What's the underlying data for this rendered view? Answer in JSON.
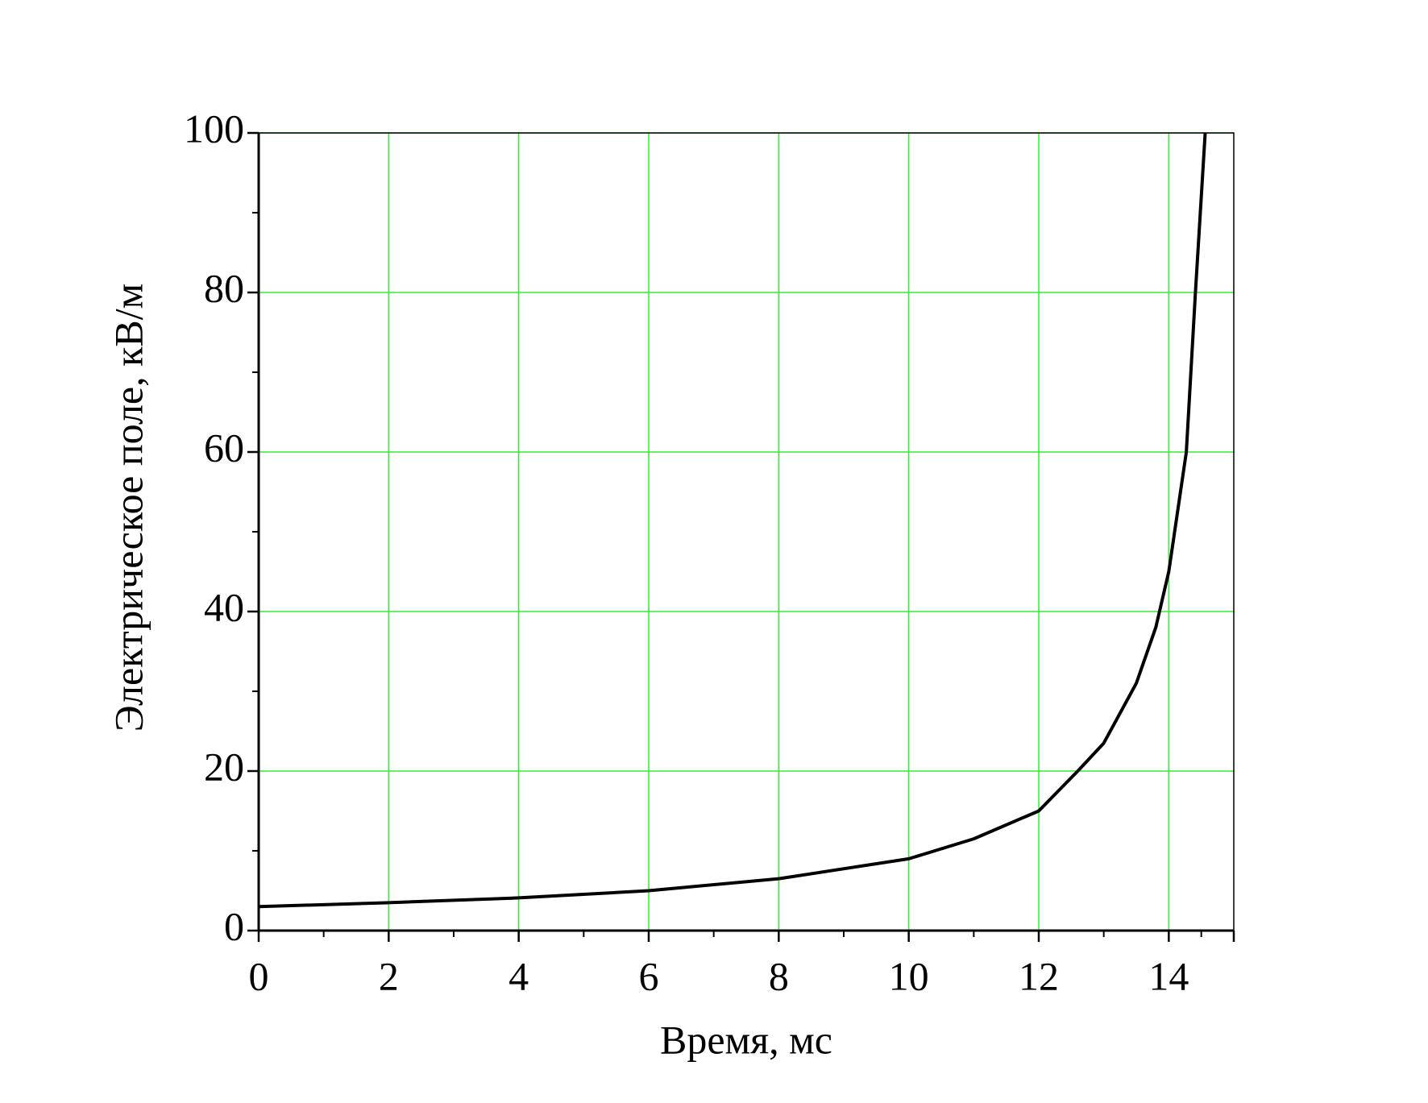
{
  "chart_data": {
    "type": "line",
    "xlabel": "Время,  мс",
    "ylabel": "Электрическое поле,  кВ/м",
    "x": [
      0,
      2,
      4,
      6,
      8,
      10,
      11,
      12,
      12.6,
      13,
      13.5,
      13.8,
      14,
      14.27,
      14.41,
      14.56
    ],
    "series": [
      {
        "color": "#000000",
        "values": [
          3,
          3.5,
          4.1,
          5,
          6.5,
          9,
          11.5,
          15,
          20,
          23.5,
          31,
          38,
          45,
          60,
          80,
          100
        ]
      }
    ],
    "xlim": [
      0,
      15
    ],
    "xticks": [
      0,
      2,
      4,
      6,
      8,
      10,
      12,
      14
    ],
    "ylim": [
      0,
      100
    ],
    "yticks": [
      0,
      20,
      40,
      60,
      80,
      100
    ],
    "grid": true,
    "grid_color": "#33ee33"
  }
}
